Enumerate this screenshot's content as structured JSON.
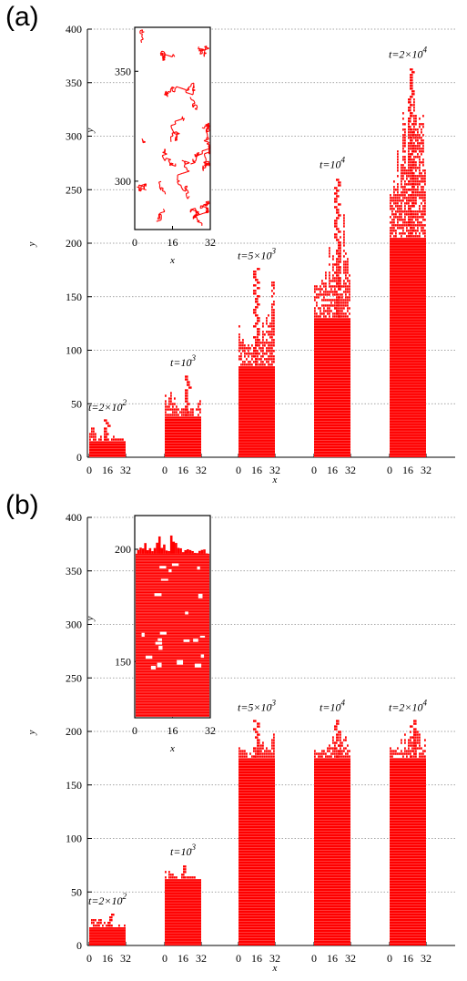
{
  "chart_data": [
    {
      "type": "scatter",
      "panel_label": "(a)",
      "xlabel": "x",
      "ylabel": "y",
      "ylim": [
        0,
        400
      ],
      "yticks": [
        0,
        50,
        100,
        150,
        200,
        250,
        300,
        350,
        400
      ],
      "xticks_each_block": [
        0,
        16,
        32
      ],
      "grid": "horizontal dotted",
      "color": "#ff0000",
      "series": [
        {
          "label": "t=2×10",
          "exp": "2",
          "solid_height": 15,
          "max_height": 33
        },
        {
          "label": "t=10",
          "exp": "3",
          "solid_height": 38,
          "max_height": 75
        },
        {
          "label": "t=5×10",
          "exp": "3",
          "solid_height": 85,
          "max_height": 175
        },
        {
          "label": "t=10",
          "exp": "4",
          "solid_height": 130,
          "max_height": 260
        },
        {
          "label": "t=2×10",
          "exp": "4",
          "solid_height": 205,
          "max_height": 363
        }
      ],
      "inset": {
        "xlabel": "x",
        "ylabel": "y",
        "xticks": [
          0,
          16,
          32
        ],
        "yticks": [
          300,
          350
        ],
        "ylim": [
          278,
          370
        ],
        "style": "sparse"
      }
    },
    {
      "type": "scatter",
      "panel_label": "(b)",
      "xlabel": "x",
      "ylabel": "y",
      "ylim": [
        0,
        400
      ],
      "yticks": [
        0,
        50,
        100,
        150,
        200,
        250,
        300,
        350,
        400
      ],
      "xticks_each_block": [
        0,
        16,
        32
      ],
      "grid": "horizontal dotted",
      "color": "#ff0000",
      "series": [
        {
          "label": "t=2×10",
          "exp": "2",
          "solid_height": 17,
          "max_height": 28
        },
        {
          "label": "t=10",
          "exp": "3",
          "solid_height": 62,
          "max_height": 74
        },
        {
          "label": "t=5×10",
          "exp": "3",
          "solid_height": 175,
          "max_height": 209
        },
        {
          "label": "t=10",
          "exp": "4",
          "solid_height": 175,
          "max_height": 209
        },
        {
          "label": "t=2×10",
          "exp": "4",
          "solid_height": 175,
          "max_height": 209
        }
      ],
      "inset": {
        "xlabel": "x",
        "ylabel": "y",
        "xticks": [
          0,
          16,
          32
        ],
        "yticks": [
          150,
          200
        ],
        "ylim": [
          125,
          215
        ],
        "style": "dense"
      }
    }
  ]
}
